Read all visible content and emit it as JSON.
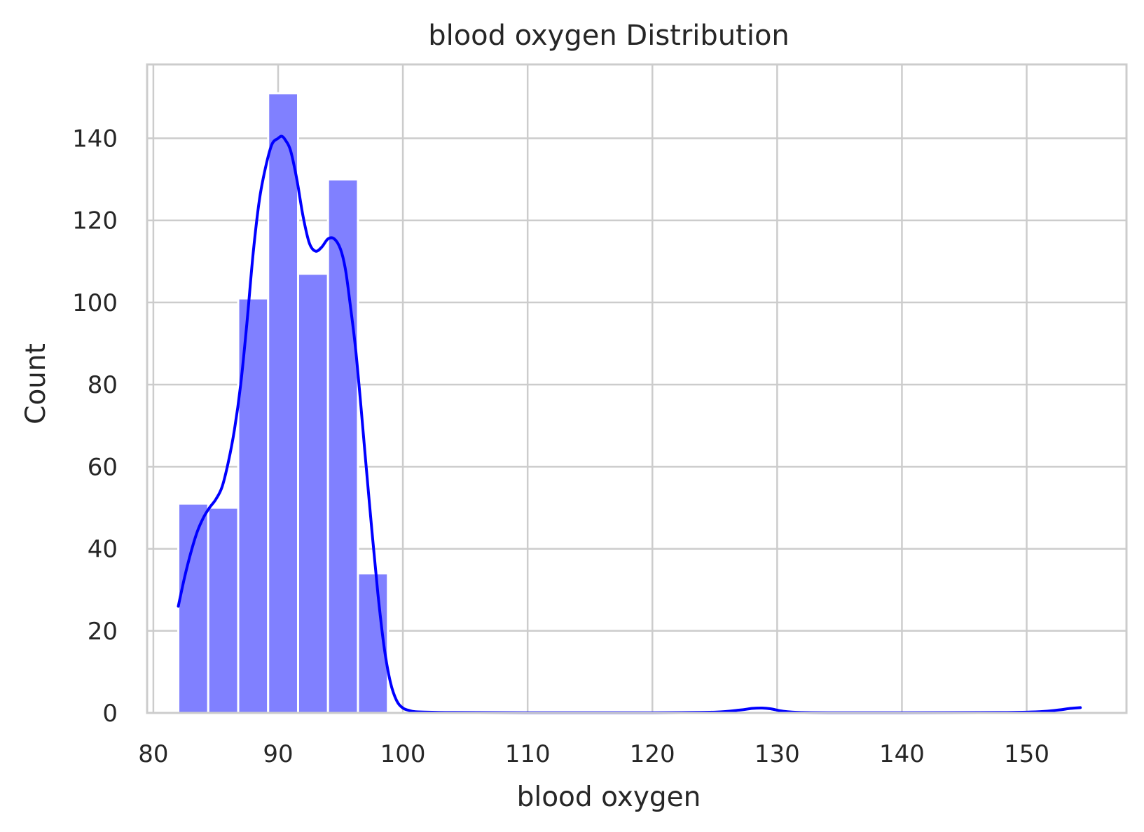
{
  "chart_data": {
    "type": "bar",
    "title": "blood oxygen  Distribution",
    "xlabel": "blood oxygen",
    "ylabel": "Count",
    "xlim": [
      79.5,
      158
    ],
    "ylim": [
      0,
      158
    ],
    "grid": true,
    "xticks": [
      80,
      90,
      100,
      110,
      120,
      130,
      140,
      150
    ],
    "yticks": [
      0,
      20,
      40,
      60,
      80,
      100,
      120,
      140
    ],
    "xtick_labels": [
      "80",
      "90",
      "100",
      "110",
      "120",
      "130",
      "140",
      "150"
    ],
    "ytick_labels": [
      "0",
      "20",
      "40",
      "60",
      "80",
      "100",
      "120",
      "140"
    ],
    "bin_width": 2.4,
    "bins": [
      {
        "start": 82.0,
        "end": 84.4,
        "count": 51
      },
      {
        "start": 84.4,
        "end": 86.8,
        "count": 50
      },
      {
        "start": 86.8,
        "end": 89.2,
        "count": 101
      },
      {
        "start": 89.2,
        "end": 91.6,
        "count": 151
      },
      {
        "start": 91.6,
        "end": 94.0,
        "count": 107
      },
      {
        "start": 94.0,
        "end": 96.4,
        "count": 130
      },
      {
        "start": 96.4,
        "end": 98.8,
        "count": 34
      }
    ],
    "kde": {
      "x": [
        82.0,
        82.5,
        83.0,
        83.5,
        84.0,
        84.5,
        85.0,
        85.5,
        86.0,
        86.5,
        87.0,
        87.5,
        88.0,
        88.5,
        89.0,
        89.5,
        90.0,
        90.3,
        90.6,
        91.0,
        91.5,
        92.0,
        92.5,
        93.0,
        93.5,
        94.0,
        94.5,
        95.0,
        95.4,
        95.8,
        96.2,
        96.6,
        97.0,
        97.5,
        98.0,
        98.5,
        99.0,
        99.5,
        100.0,
        100.5,
        101.0,
        102.0,
        104.0,
        110.0,
        120.0,
        125.0,
        127.0,
        128.0,
        128.8,
        129.5,
        130.5,
        132.0,
        135.0,
        140.0,
        148.0,
        151.0,
        152.5,
        153.5,
        154.3
      ],
      "y": [
        26,
        33,
        39,
        44,
        47.5,
        50,
        52,
        55,
        61,
        69,
        80,
        95,
        112,
        125,
        133,
        138.5,
        140,
        140.5,
        139.5,
        137,
        130,
        121,
        114.5,
        112.5,
        113.5,
        115.5,
        115.5,
        113,
        108,
        99,
        89,
        76,
        62,
        45,
        29,
        16,
        7.5,
        3,
        1.2,
        0.6,
        0.3,
        0.2,
        0.1,
        0.05,
        0.05,
        0.2,
        0.7,
        1.1,
        1.2,
        1.0,
        0.4,
        0.1,
        0.05,
        0.05,
        0.1,
        0.3,
        0.7,
        1.1,
        1.3
      ]
    },
    "colors": {
      "bar_fill": "#8080ff",
      "bar_edge": "#ffffff",
      "kde_line": "#0000ff",
      "grid": "#cccccc",
      "spine": "#cccccc",
      "text": "#262626"
    }
  }
}
